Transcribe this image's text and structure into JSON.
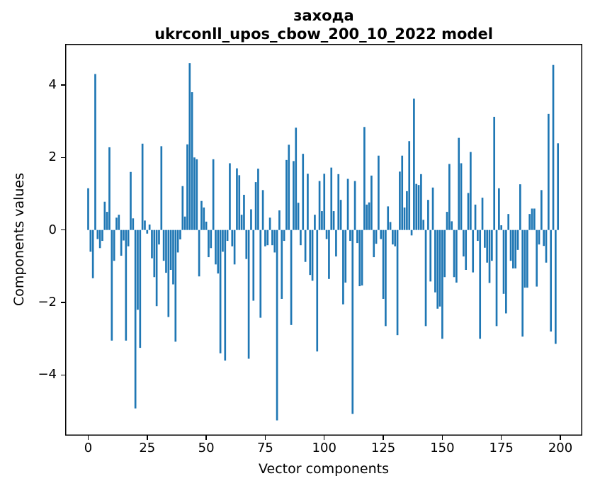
{
  "title": {
    "line1": "захода",
    "line2": "ukrconll_upos_cbow_200_10_2022 model"
  },
  "axes": {
    "xlabel": "Vector components",
    "ylabel": "Components values"
  },
  "chart_data": {
    "type": "bar",
    "title": "захода\nukrconll_upos_cbow_200_10_2022 model",
    "xlabel": "Vector components",
    "ylabel": "Components values",
    "x_start": 0,
    "x_end": 199,
    "xticks": [
      0,
      25,
      50,
      75,
      100,
      125,
      150,
      175,
      200
    ],
    "yticks": [
      4,
      2,
      0,
      -2,
      -4
    ],
    "xlim": [
      -9.75,
      209.3
    ],
    "ylim": [
      -5.67,
      5.13
    ],
    "grid": false,
    "legend": null,
    "bar_color": "#1f77b4",
    "bar_width_data": 0.8,
    "frame_color": "#000000",
    "values": [
      1.15,
      -0.6,
      -1.33,
      4.3,
      -0.25,
      -0.5,
      -0.3,
      0.78,
      0.5,
      2.28,
      -3.05,
      -0.85,
      0.34,
      0.42,
      -0.71,
      -0.29,
      -3.05,
      -0.45,
      1.6,
      0.32,
      -4.92,
      -2.2,
      -3.25,
      2.38,
      0.26,
      -0.1,
      0.15,
      -0.78,
      -1.3,
      -2.1,
      -0.4,
      2.31,
      -0.85,
      -1.18,
      -2.4,
      -1.1,
      -1.5,
      -3.08,
      -0.62,
      -0.26,
      1.21,
      0.37,
      2.36,
      4.6,
      3.8,
      2.0,
      1.95,
      -1.28,
      0.8,
      0.62,
      0.23,
      -0.75,
      -0.5,
      1.95,
      -0.95,
      -1.2,
      -3.4,
      -0.6,
      -3.6,
      -0.3,
      1.84,
      -0.45,
      -0.95,
      1.7,
      1.51,
      0.42,
      0.97,
      -0.8,
      -3.55,
      0.57,
      -1.95,
      1.32,
      1.69,
      -2.42,
      1.1,
      -0.45,
      -0.42,
      0.34,
      -0.42,
      -0.62,
      -5.25,
      0.54,
      -1.9,
      -0.3,
      1.93,
      2.35,
      -2.62,
      1.9,
      2.82,
      0.75,
      -0.42,
      2.1,
      -0.88,
      1.55,
      -1.24,
      -1.4,
      0.42,
      -3.35,
      1.35,
      0.52,
      1.55,
      -0.25,
      -1.35,
      1.72,
      0.52,
      -0.73,
      1.54,
      0.83,
      -2.05,
      -1.45,
      1.41,
      -0.3,
      -5.07,
      1.35,
      -0.36,
      -1.55,
      -1.53,
      2.84,
      0.7,
      0.76,
      1.5,
      -0.75,
      -0.38,
      2.05,
      -0.25,
      -1.9,
      -2.65,
      0.65,
      0.22,
      -0.4,
      -0.45,
      -2.9,
      1.61,
      2.05,
      0.62,
      1.07,
      2.45,
      -0.15,
      3.62,
      1.27,
      1.24,
      1.54,
      0.28,
      -2.65,
      0.83,
      -1.42,
      1.17,
      -1.72,
      -2.17,
      -2.11,
      -3.0,
      -1.3,
      0.5,
      1.82,
      0.24,
      -1.3,
      -1.45,
      2.54,
      1.84,
      -0.73,
      -1.1,
      1.02,
      2.15,
      -1.17,
      0.7,
      -0.3,
      -3.0,
      0.89,
      -0.49,
      -0.9,
      -1.46,
      -0.85,
      3.12,
      -2.65,
      1.15,
      0.13,
      -1.76,
      -2.3,
      0.44,
      -0.85,
      -1.06,
      -1.06,
      -0.55,
      1.26,
      -2.94,
      -1.59,
      -1.59,
      0.44,
      0.59,
      0.59,
      -1.56,
      -0.4,
      1.1,
      -0.44,
      -0.9,
      3.2,
      -2.8,
      4.55,
      -3.14,
      2.39
    ]
  }
}
